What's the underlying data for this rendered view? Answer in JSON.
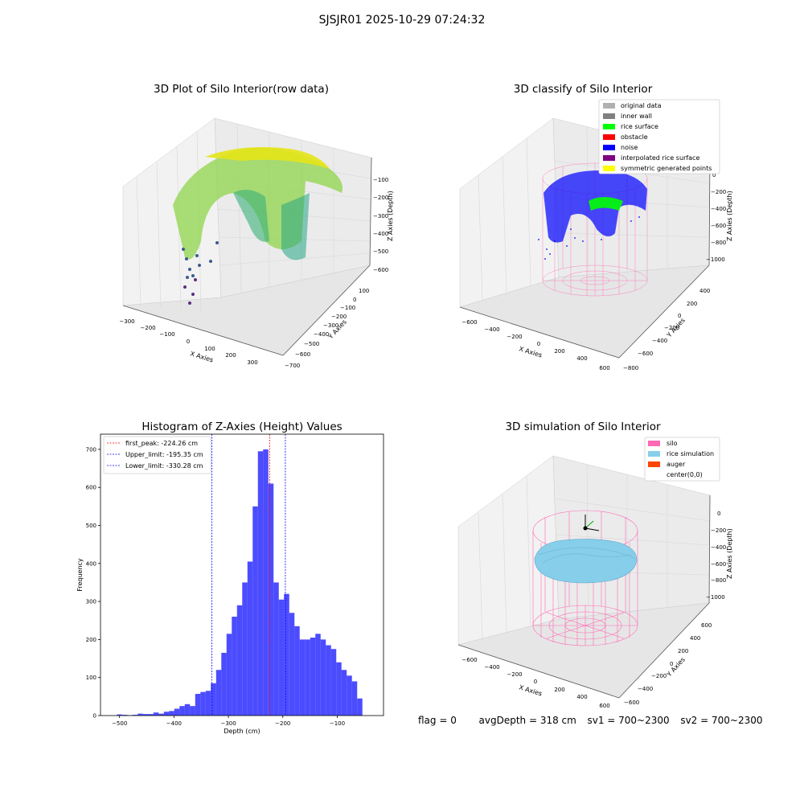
{
  "header": {
    "title": "SJSJR01 2025-10-29 07:24:32"
  },
  "footer": {
    "flag": "flag = 0",
    "avg": "avgDepth = 318 cm",
    "sv1": "sv1 = 700~2300",
    "sv2": "sv2 = 700~2300"
  },
  "panels": {
    "p1": {
      "title": "3D Plot of Silo Interior(row data)",
      "xlabel": "X Axies",
      "ylabel": "Y Axies",
      "zlabel": "Z Axies (Depth)",
      "xticks": [
        "−300",
        "−200",
        "−100",
        "0",
        "100",
        "200",
        "300"
      ],
      "yticks": [
        "100",
        "0",
        "−100",
        "−200",
        "−300",
        "−400",
        "−500",
        "−600",
        "−700"
      ],
      "zticks": [
        "−100",
        "−200",
        "−300",
        "−400",
        "−500",
        "−600"
      ]
    },
    "p2": {
      "title": "3D classify of Silo Interior",
      "xlabel": "X Axies",
      "ylabel": "Y Axies",
      "zlabel": "Z Axies (Depth)",
      "xticks": [
        "−600",
        "−400",
        "−200",
        "0",
        "200",
        "400",
        "600"
      ],
      "yticks": [
        "400",
        "200",
        "0",
        "−200",
        "−400",
        "−600",
        "−800"
      ],
      "zticks": [
        "0",
        "−200",
        "−400",
        "−600",
        "−800",
        "−1000"
      ],
      "legend": [
        {
          "label": "original data",
          "color": "#b0b0b0"
        },
        {
          "label": "inner wall",
          "color": "#808080"
        },
        {
          "label": "rice surface",
          "color": "#00ff00"
        },
        {
          "label": "obstacle",
          "color": "#ff0000"
        },
        {
          "label": "noise",
          "color": "#0000ff"
        },
        {
          "label": "interpolated rice surface",
          "color": "#800080"
        },
        {
          "label": "symmetric generated points",
          "color": "#ffff00"
        }
      ]
    },
    "p4": {
      "title": "3D simulation of Silo Interior",
      "xlabel": "X Axies",
      "ylabel": "Y Axies",
      "zlabel": "Z Axies (Depth)",
      "xticks": [
        "−600",
        "−400",
        "−200",
        "0",
        "200",
        "400",
        "600"
      ],
      "yticks": [
        "600",
        "400",
        "200",
        "0",
        "−200",
        "−400",
        "−600"
      ],
      "zticks": [
        "0",
        "−200",
        "−400",
        "−600",
        "−800",
        "−1000"
      ],
      "legend": [
        {
          "label": "silo",
          "color": "#ff69b4"
        },
        {
          "label": "rice simulation",
          "color": "#87ceeb"
        },
        {
          "label": "auger",
          "color": "#ff4500"
        },
        {
          "label": "center(0,0)",
          "color": ""
        }
      ]
    }
  },
  "chart_data": {
    "type": "bar",
    "title": "Histogram of Z-Axies (Height) Values",
    "xlabel": "Depth (cm)",
    "ylabel": "Frequency",
    "xlim": [
      -535,
      -15
    ],
    "ylim": [
      0,
      740
    ],
    "xticks": [
      -500,
      -400,
      -300,
      -200,
      -100
    ],
    "yticks": [
      0,
      100,
      200,
      300,
      400,
      500,
      600,
      700
    ],
    "bin_width": 9.6,
    "bin_start": -505,
    "values": [
      3,
      2,
      1,
      2,
      5,
      4,
      4,
      8,
      5,
      10,
      12,
      18,
      25,
      30,
      25,
      57,
      62,
      65,
      85,
      120,
      165,
      215,
      260,
      290,
      350,
      405,
      550,
      695,
      700,
      610,
      350,
      305,
      320,
      270,
      235,
      200,
      200,
      205,
      215,
      200,
      185,
      175,
      140,
      120,
      105,
      90,
      45
    ],
    "color": "#0000ff",
    "vlines": [
      {
        "label": "first_peak: -224.26 cm",
        "x": -224.26,
        "color": "#ff0000"
      },
      {
        "label": "Upper_limit: -195.35 cm",
        "x": -195.35,
        "color": "#0000ff"
      },
      {
        "label": "Lower_limit: -330.28 cm",
        "x": -330.28,
        "color": "#0000ff"
      }
    ],
    "legend_position": "upper-left"
  }
}
